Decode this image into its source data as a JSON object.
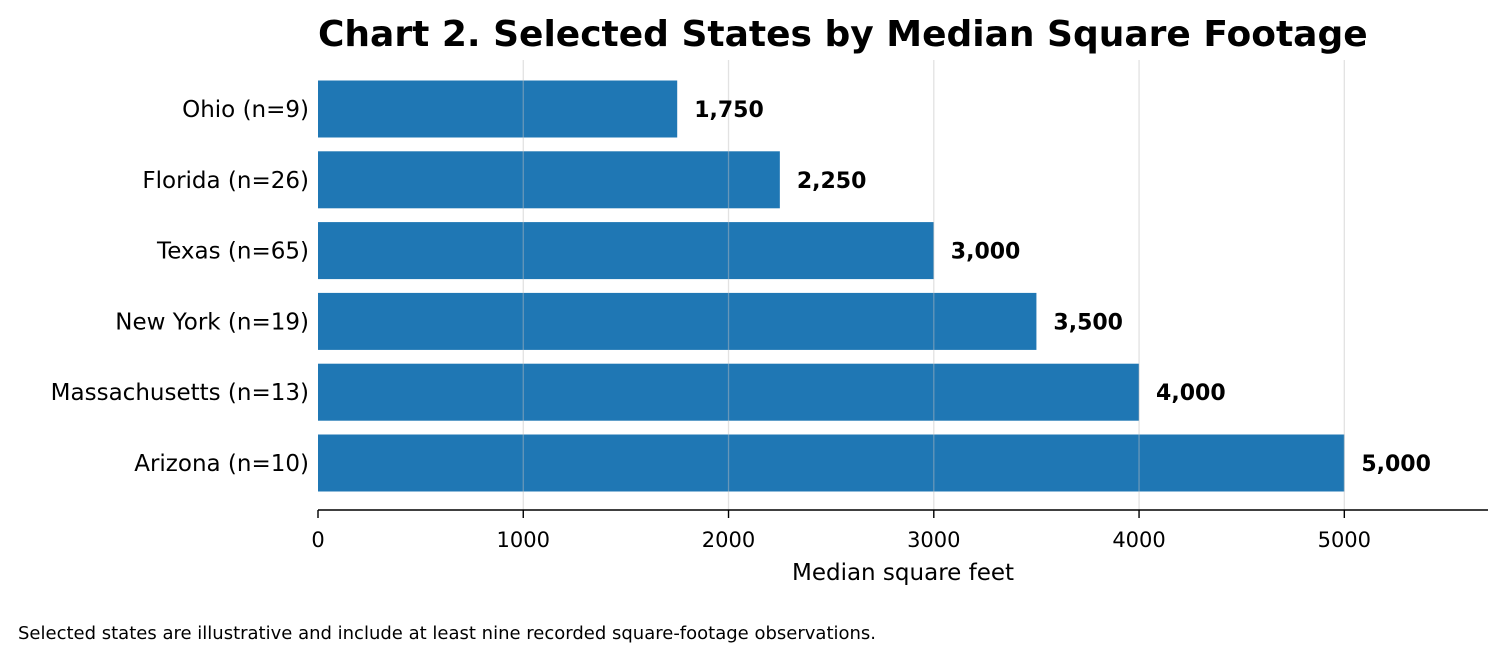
{
  "chart_data": {
    "type": "bar",
    "orientation": "horizontal",
    "title": "Chart 2. Selected States by Median Square Footage",
    "xlabel": "Median square feet",
    "ylabel": "",
    "categories": [
      "Ohio (n=9)",
      "Florida (n=26)",
      "Texas (n=65)",
      "New York (n=19)",
      "Massachusetts (n=13)",
      "Arizona (n=10)"
    ],
    "values": [
      1750,
      2250,
      3000,
      3500,
      4000,
      5000
    ],
    "value_labels": [
      "1,750",
      "2,250",
      "3,000",
      "3,500",
      "4,000",
      "5,000"
    ],
    "xlim": [
      0,
      5700
    ],
    "xticks": [
      0,
      1000,
      2000,
      3000,
      4000,
      5000
    ],
    "grid": "vertical",
    "bar_color": "#1f77b4",
    "footnote": "Selected states are illustrative and include at least nine recorded square-footage observations."
  }
}
